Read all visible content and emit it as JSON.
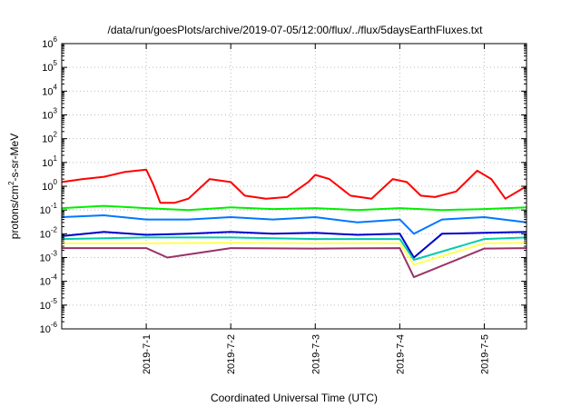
{
  "chart_data": {
    "type": "line",
    "title": "/data/run/goesPlots/archive/2019-07-05/12:00/flux/../flux/5daysEarthFluxes.txt",
    "xlabel": "Coordinated Universal Time (UTC)",
    "ylabel": "protons/cm²-s-sr-MeV",
    "ylabel_parts": {
      "pre": "protons/cm",
      "sup": "2",
      "post": "-s-sr-MeV"
    },
    "yscale": "log",
    "ylim_exp": [
      -6,
      6
    ],
    "y_tick_exponents": [
      -6,
      -5,
      -4,
      -3,
      -2,
      -1,
      0,
      1,
      2,
      3,
      4,
      5,
      6
    ],
    "x_range_days": [
      "2019-06-30T00:00",
      "2019-07-05T12:00"
    ],
    "x_ticks": [
      "2019-7-1",
      "2019-7-2",
      "2019-7-3",
      "2019-7-4",
      "2019-7-5"
    ],
    "grid": true,
    "legend": "none",
    "series": [
      {
        "color": "#ff0000",
        "x": [
          "2019-06-30T00:00",
          "2019-06-30T06:00",
          "2019-06-30T12:00",
          "2019-06-30T18:00",
          "2019-07-01T00:00",
          "2019-07-01T02:00",
          "2019-07-01T04:00",
          "2019-07-01T08:00",
          "2019-07-01T12:00",
          "2019-07-01T18:00",
          "2019-07-02T00:00",
          "2019-07-02T04:00",
          "2019-07-02T10:00",
          "2019-07-02T16:00",
          "2019-07-02T22:00",
          "2019-07-03T00:00",
          "2019-07-03T04:00",
          "2019-07-03T10:00",
          "2019-07-03T16:00",
          "2019-07-03T22:00",
          "2019-07-04T02:00",
          "2019-07-04T06:00",
          "2019-07-04T10:00",
          "2019-07-04T16:00",
          "2019-07-04T22:00",
          "2019-07-05T02:00",
          "2019-07-05T06:00",
          "2019-07-05T12:00"
        ],
        "y": [
          1.5,
          2.0,
          2.5,
          4.0,
          5.0,
          1.2,
          0.2,
          0.2,
          0.3,
          2.0,
          1.5,
          0.4,
          0.3,
          0.35,
          1.5,
          3.0,
          2.0,
          0.4,
          0.3,
          2.0,
          1.5,
          0.4,
          0.35,
          0.6,
          4.5,
          2.0,
          0.3,
          1.0
        ]
      },
      {
        "color": "#00ee00",
        "x": [
          "2019-06-30T00:00",
          "2019-06-30T12:00",
          "2019-07-01T00:00",
          "2019-07-01T12:00",
          "2019-07-02T00:00",
          "2019-07-02T12:00",
          "2019-07-03T00:00",
          "2019-07-03T12:00",
          "2019-07-04T00:00",
          "2019-07-04T12:00",
          "2019-07-05T00:00",
          "2019-07-05T12:00"
        ],
        "y": [
          0.12,
          0.15,
          0.12,
          0.1,
          0.13,
          0.11,
          0.12,
          0.1,
          0.12,
          0.1,
          0.11,
          0.13
        ]
      },
      {
        "color": "#0077ff",
        "x": [
          "2019-06-30T00:00",
          "2019-06-30T12:00",
          "2019-07-01T00:00",
          "2019-07-01T12:00",
          "2019-07-02T00:00",
          "2019-07-02T12:00",
          "2019-07-03T00:00",
          "2019-07-03T12:00",
          "2019-07-04T00:00",
          "2019-07-04T04:00",
          "2019-07-04T12:00",
          "2019-07-05T00:00",
          "2019-07-05T12:00"
        ],
        "y": [
          0.05,
          0.06,
          0.04,
          0.04,
          0.05,
          0.04,
          0.05,
          0.03,
          0.04,
          0.01,
          0.04,
          0.05,
          0.03
        ]
      },
      {
        "color": "#0000cc",
        "x": [
          "2019-06-30T00:00",
          "2019-06-30T12:00",
          "2019-07-01T00:00",
          "2019-07-01T12:00",
          "2019-07-02T00:00",
          "2019-07-02T12:00",
          "2019-07-03T00:00",
          "2019-07-03T12:00",
          "2019-07-04T00:00",
          "2019-07-04T04:00",
          "2019-07-04T12:00",
          "2019-07-05T00:00",
          "2019-07-05T12:00"
        ],
        "y": [
          0.008,
          0.012,
          0.009,
          0.01,
          0.012,
          0.01,
          0.011,
          0.009,
          0.01,
          0.001,
          0.01,
          0.011,
          0.012
        ]
      },
      {
        "color": "#00ccaa",
        "x": [
          "2019-06-30T00:00",
          "2019-07-01T00:00",
          "2019-07-02T00:00",
          "2019-07-03T00:00",
          "2019-07-04T00:00",
          "2019-07-04T04:00",
          "2019-07-05T00:00",
          "2019-07-05T12:00"
        ],
        "y": [
          0.006,
          0.007,
          0.007,
          0.006,
          0.006,
          0.0008,
          0.006,
          0.007
        ]
      },
      {
        "color": "#ffff55",
        "x": [
          "2019-06-30T00:00",
          "2019-07-01T00:00",
          "2019-07-02T00:00",
          "2019-07-03T00:00",
          "2019-07-04T00:00",
          "2019-07-04T04:00",
          "2019-07-05T00:00",
          "2019-07-05T12:00"
        ],
        "y": [
          0.004,
          0.004,
          0.0042,
          0.004,
          0.004,
          0.0005,
          0.004,
          0.0042
        ]
      },
      {
        "color": "#993366",
        "x": [
          "2019-06-30T00:00",
          "2019-07-01T00:00",
          "2019-07-01T06:00",
          "2019-07-02T00:00",
          "2019-07-03T00:00",
          "2019-07-04T00:00",
          "2019-07-04T04:00",
          "2019-07-05T00:00",
          "2019-07-05T12:00"
        ],
        "y": [
          0.0025,
          0.0025,
          0.001,
          0.0025,
          0.0024,
          0.0025,
          0.00015,
          0.0024,
          0.0025
        ]
      }
    ]
  }
}
